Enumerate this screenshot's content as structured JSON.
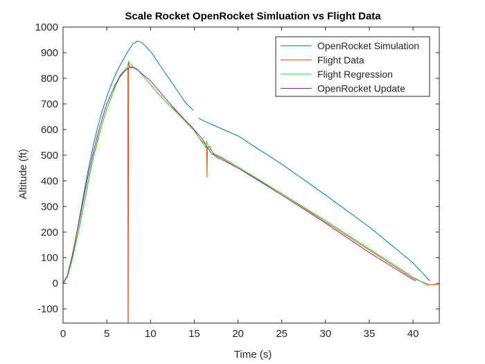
{
  "chart_data": {
    "type": "line",
    "title": "Scale Rocket OpenRocket Simluation vs Flight Data",
    "xlabel": "Time (s)",
    "ylabel": "Altitude (ft)",
    "xlim": [
      0,
      43
    ],
    "ylim": [
      -155,
      1000
    ],
    "xticks": [
      0,
      5,
      10,
      15,
      20,
      25,
      30,
      35,
      40
    ],
    "yticks": [
      -100,
      0,
      100,
      200,
      300,
      400,
      500,
      600,
      700,
      800,
      900,
      1000
    ],
    "grid": false,
    "legend_position": "top-right",
    "series": [
      {
        "name": "OpenRocket Simulation",
        "color": "#0072bd",
        "points": [
          [
            0,
            0
          ],
          [
            0.5,
            30
          ],
          [
            1,
            100
          ],
          [
            1.5,
            185
          ],
          [
            2,
            280
          ],
          [
            2.5,
            375
          ],
          [
            3,
            465
          ],
          [
            3.5,
            545
          ],
          [
            4,
            615
          ],
          [
            4.5,
            675
          ],
          [
            5,
            728
          ],
          [
            5.5,
            775
          ],
          [
            6,
            815
          ],
          [
            6.5,
            850
          ],
          [
            7,
            880
          ],
          [
            7.5,
            910
          ],
          [
            8,
            935
          ],
          [
            8.5,
            945
          ],
          [
            9,
            940
          ],
          [
            10,
            905
          ],
          [
            11,
            855
          ],
          [
            12,
            805
          ],
          [
            13,
            755
          ],
          [
            14,
            705
          ],
          [
            14.9,
            675
          ],
          null,
          [
            15.5,
            645
          ],
          [
            16,
            635
          ],
          [
            18,
            605
          ],
          [
            20,
            575
          ],
          [
            25,
            465
          ],
          [
            30,
            345
          ],
          [
            35,
            220
          ],
          [
            40,
            80
          ],
          [
            41.9,
            10
          ]
        ]
      },
      {
        "name": "Flight Data",
        "color": "#d95319",
        "points": [
          [
            0,
            0
          ],
          [
            0.5,
            30
          ],
          [
            1,
            90
          ],
          [
            1.5,
            165
          ],
          [
            2,
            245
          ],
          [
            2.5,
            330
          ],
          [
            3,
            420
          ],
          [
            3.5,
            500
          ],
          [
            4,
            565
          ],
          [
            4.5,
            625
          ],
          [
            5,
            680
          ],
          [
            5.5,
            725
          ],
          [
            6,
            770
          ],
          [
            6.5,
            810
          ],
          [
            7,
            830
          ],
          [
            7.3,
            840
          ],
          [
            7.4,
            840
          ],
          [
            7.42,
            -155
          ],
          [
            7.45,
            -155
          ],
          [
            7.5,
            860
          ],
          [
            7.6,
            845
          ],
          [
            8,
            843
          ],
          [
            8.5,
            835
          ],
          [
            9,
            815
          ],
          [
            10,
            775
          ],
          [
            11,
            735
          ],
          [
            12,
            700
          ],
          [
            13,
            670
          ],
          [
            14,
            635
          ],
          [
            15,
            600
          ],
          [
            15.5,
            570
          ],
          [
            16,
            550
          ],
          [
            16.3,
            545
          ],
          [
            16.4,
            525
          ],
          [
            16.45,
            415
          ],
          [
            16.5,
            530
          ],
          [
            16.8,
            535
          ],
          [
            17,
            515
          ],
          [
            17.3,
            500
          ],
          [
            17.6,
            490
          ],
          [
            18,
            485
          ],
          [
            20,
            450
          ],
          [
            25,
            350
          ],
          [
            30,
            240
          ],
          [
            35,
            130
          ],
          [
            40,
            20
          ],
          [
            41.8,
            -5
          ],
          [
            43,
            -5
          ]
        ]
      },
      {
        "name": "Flight Regression",
        "color": "#33d633",
        "points": [
          [
            0,
            0
          ],
          [
            0.5,
            25
          ],
          [
            1,
            85
          ],
          [
            1.5,
            160
          ],
          [
            2,
            240
          ],
          [
            2.5,
            325
          ],
          [
            3,
            415
          ],
          [
            3.5,
            495
          ],
          [
            4,
            560
          ],
          [
            4.5,
            625
          ],
          [
            5,
            680
          ],
          [
            5.5,
            725
          ],
          [
            6,
            770
          ],
          [
            6.5,
            805
          ],
          [
            7,
            825
          ],
          [
            7.3,
            840
          ],
          [
            7.5,
            868
          ],
          [
            7.6,
            858
          ],
          [
            8,
            845
          ],
          [
            8.5,
            835
          ],
          [
            9,
            815
          ],
          [
            10,
            775
          ],
          [
            11,
            735
          ],
          [
            12,
            700
          ],
          [
            13,
            665
          ],
          [
            14,
            630
          ],
          [
            15,
            595
          ],
          [
            15.5,
            570
          ],
          [
            16,
            545
          ],
          [
            16.3,
            530
          ],
          [
            16.4,
            555
          ],
          [
            16.6,
            535
          ],
          [
            17,
            515
          ],
          [
            17.3,
            505
          ],
          [
            18,
            495
          ],
          [
            20,
            455
          ],
          [
            25,
            350
          ],
          [
            30,
            245
          ],
          [
            35,
            135
          ],
          [
            40,
            25
          ],
          [
            41.8,
            -10
          ]
        ]
      },
      {
        "name": "OpenRocket Update",
        "color": "#7e2f8e",
        "points": [
          [
            0,
            0
          ],
          [
            0.5,
            30
          ],
          [
            1,
            100
          ],
          [
            1.5,
            185
          ],
          [
            2,
            270
          ],
          [
            2.5,
            360
          ],
          [
            3,
            445
          ],
          [
            3.5,
            520
          ],
          [
            4,
            585
          ],
          [
            4.5,
            645
          ],
          [
            5,
            700
          ],
          [
            5.5,
            740
          ],
          [
            6,
            778
          ],
          [
            6.5,
            808
          ],
          [
            7,
            828
          ],
          [
            7.5,
            840
          ],
          [
            8,
            842
          ],
          [
            8.5,
            833
          ],
          [
            9,
            818
          ],
          [
            10,
            790
          ],
          [
            11,
            750
          ],
          [
            12,
            710
          ],
          [
            13,
            672
          ],
          [
            14,
            635
          ],
          [
            15,
            600
          ],
          [
            16,
            560
          ],
          [
            16.5,
            530
          ],
          [
            17,
            505
          ],
          [
            18,
            490
          ],
          [
            20,
            450
          ],
          [
            25,
            345
          ],
          [
            30,
            235
          ],
          [
            35,
            120
          ],
          [
            40,
            15
          ],
          [
            40.3,
            10
          ]
        ]
      }
    ]
  }
}
